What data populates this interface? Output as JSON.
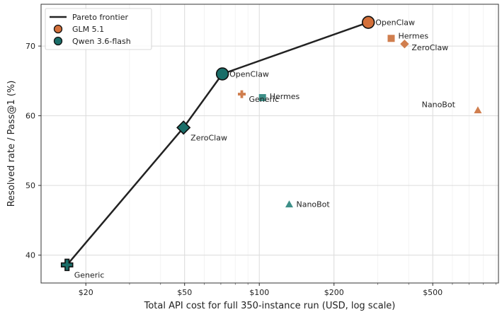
{
  "chart_data": {
    "type": "scatter",
    "xlabel": "Total API cost for full 350-instance run (USD, log scale)",
    "ylabel": "Resolved rate / Pass@1 (%)",
    "x_scale": "log",
    "xlim": [
      13.2,
      920
    ],
    "ylim": [
      36.0,
      76.0
    ],
    "x_ticks": [
      {
        "value": 20,
        "label": "$20"
      },
      {
        "value": 50,
        "label": "$50"
      },
      {
        "value": 100,
        "label": "$100"
      },
      {
        "value": 200,
        "label": "$200"
      },
      {
        "value": 500,
        "label": "$500"
      }
    ],
    "y_ticks": [
      40,
      50,
      60,
      70
    ],
    "grid": true,
    "legend_position": "top-left",
    "legend": [
      {
        "label": "Pareto frontier",
        "kind": "line",
        "color": "#222222"
      },
      {
        "label": "GLM 5.1",
        "kind": "circle",
        "color": "#d4703a"
      },
      {
        "label": "Qwen 3.6-flash",
        "kind": "circle",
        "color": "#1a6e69"
      }
    ],
    "pareto_frontier": {
      "name": "Pareto frontier",
      "points": [
        {
          "x": 16.8,
          "y": 38.6
        },
        {
          "x": 49.5,
          "y": 58.3
        },
        {
          "x": 71.0,
          "y": 66.0
        },
        {
          "x": 275.0,
          "y": 73.4
        }
      ]
    },
    "series": [
      {
        "name": "GLM 5.1",
        "color": "#d4703a",
        "points": [
          {
            "label": "OpenClaw",
            "x": 275.0,
            "y": 73.4,
            "marker": "circle",
            "frontier": true
          },
          {
            "label": "Hermes",
            "x": 340.0,
            "y": 71.1,
            "marker": "square",
            "frontier": false
          },
          {
            "label": "ZeroClaw",
            "x": 385.0,
            "y": 70.3,
            "marker": "diamond",
            "frontier": false
          },
          {
            "label": "Generic",
            "x": 85.0,
            "y": 63.1,
            "marker": "plus",
            "frontier": false
          },
          {
            "label": "NanoBot",
            "x": 760.0,
            "y": 60.8,
            "marker": "triangle",
            "frontier": false
          }
        ]
      },
      {
        "name": "Qwen 3.6-flash",
        "color": "#1a6e69",
        "points": [
          {
            "label": "OpenClaw",
            "x": 71.0,
            "y": 66.0,
            "marker": "circle",
            "frontier": true
          },
          {
            "label": "Hermes",
            "x": 103.0,
            "y": 62.6,
            "marker": "square",
            "frontier": false
          },
          {
            "label": "ZeroClaw",
            "x": 49.5,
            "y": 58.3,
            "marker": "diamond",
            "frontier": true
          },
          {
            "label": "NanoBot",
            "x": 132.0,
            "y": 47.3,
            "marker": "triangle",
            "frontier": false
          },
          {
            "label": "Generic",
            "x": 16.8,
            "y": 38.6,
            "marker": "plus",
            "frontier": true
          }
        ]
      }
    ]
  }
}
